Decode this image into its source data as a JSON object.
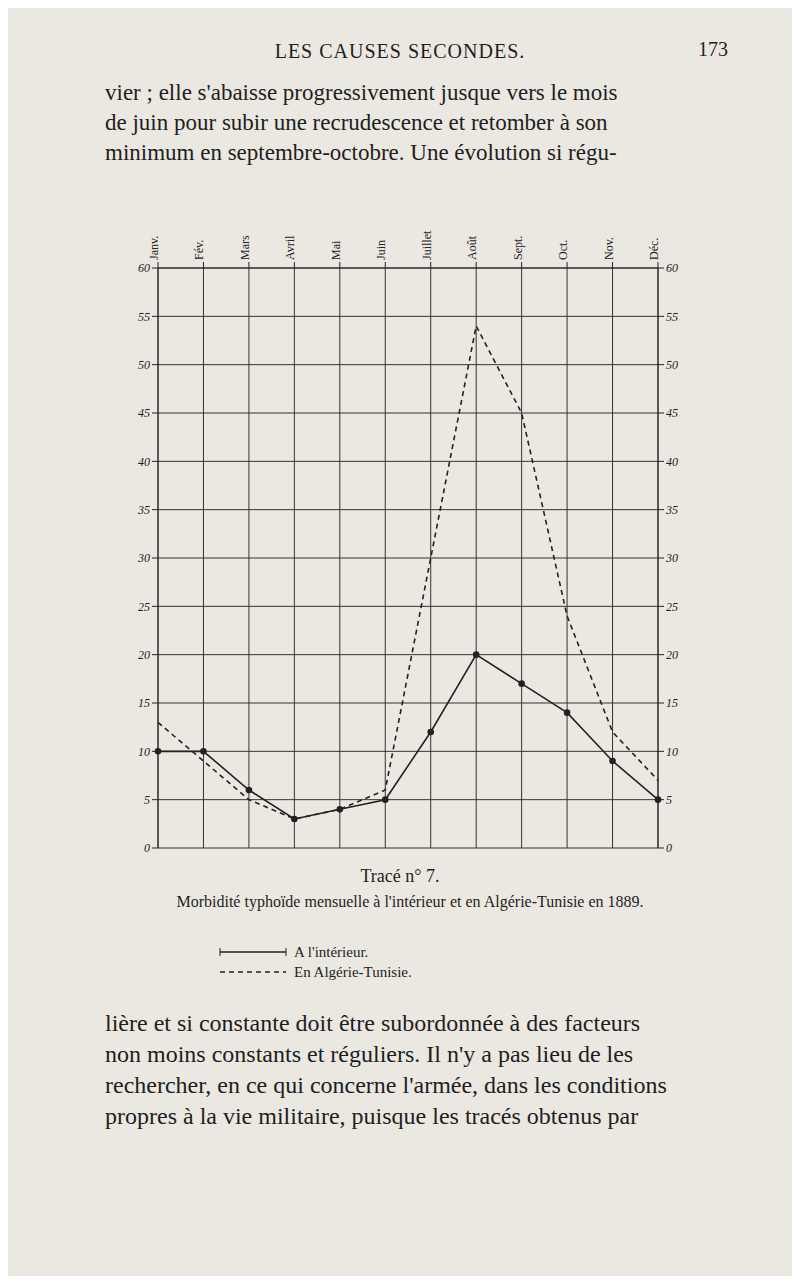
{
  "header": {
    "running_title": "LES CAUSES SECONDES.",
    "page_number": "173"
  },
  "paragraph_top": [
    "vier ; elle s'abaisse progressivement jusque vers le mois",
    "de juin pour subir une recrudescence et retomber à son",
    "minimum en septembre-octobre. Une évolution si régu-"
  ],
  "chart_data": {
    "type": "line",
    "title": "Tracé n° 7.",
    "subtitle": "Morbidité typhoïde mensuelle à l'intérieur et en Algérie-Tunisie en 1889.",
    "categories": [
      "Janv.",
      "Fév.",
      "Mars",
      "Avril",
      "Mai",
      "Juin",
      "Juillet",
      "Août",
      "Sept.",
      "Oct.",
      "Nov.",
      "Déc."
    ],
    "series": [
      {
        "name": "A l'intérieur.",
        "color": "#222222",
        "line_style": "solid",
        "marker": "circle",
        "values": [
          10,
          10,
          6,
          3,
          4,
          5,
          12,
          20,
          17,
          14,
          9,
          5
        ]
      },
      {
        "name": "En Algérie-Tunisie.",
        "color": "#222222",
        "line_style": "dashed",
        "marker": "none",
        "values": [
          13,
          9,
          5,
          3,
          4,
          6,
          30,
          54,
          45,
          24,
          12,
          7
        ]
      }
    ],
    "ylim": [
      0,
      60
    ],
    "yticks": [
      0,
      5,
      10,
      15,
      20,
      25,
      30,
      35,
      40,
      45,
      50,
      55,
      60
    ],
    "grid": true
  },
  "paragraph_bottom": [
    "lière et si constante doit être subordonnée à des facteurs",
    "non moins constants et réguliers. Il n'y a pas lieu de les",
    "rechercher, en ce qui concerne l'armée, dans les conditions",
    "propres à la vie militaire, puisque les tracés obtenus par"
  ]
}
